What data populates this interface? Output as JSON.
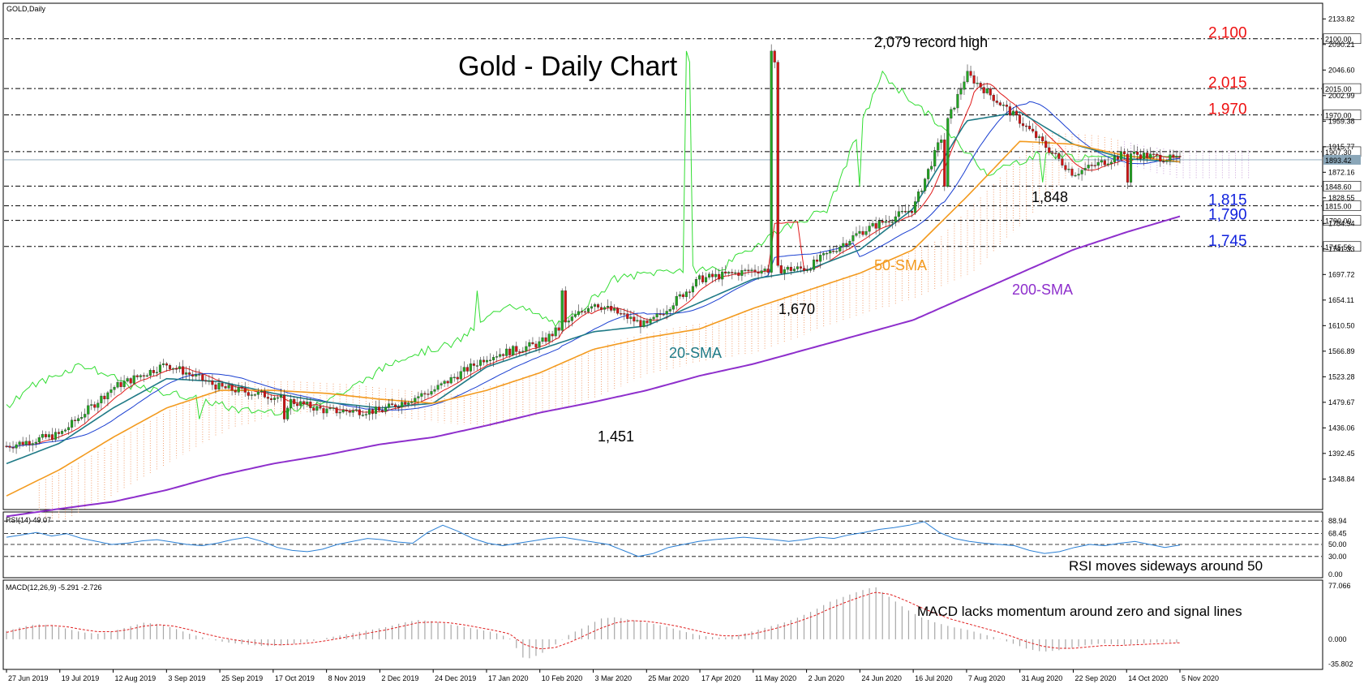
{
  "symbol_label": "GOLD,Daily",
  "title": "Gold - Daily Chart",
  "colors": {
    "bull": "#22a422",
    "bear": "#d01414",
    "wick": "#333333",
    "sma20": "#1f7a86",
    "sma50": "#f39a1e",
    "sma200": "#8e2fcc",
    "tenkan": "#e01a1a",
    "kijun": "#1a3fd1",
    "chikou": "#33dd33",
    "cloud": "#f2a070",
    "cloud_neg": "#c8a0d8",
    "level_red": "#ee1111",
    "level_blue": "#1122dd",
    "rsi": "#2a7fd4",
    "macd_hist": "#a8a8a8",
    "macd_signal": "#e02020"
  },
  "chart_data": [
    {
      "type": "candlestick",
      "name": "price",
      "y_ticks": [
        "2133.82",
        "2090.21",
        "2046.60",
        "2002.99",
        "1959.38",
        "1915.77",
        "1872.16",
        "1828.55",
        "1784.94",
        "1741.33",
        "1697.72",
        "1654.11",
        "1610.50",
        "1566.89",
        "1523.28",
        "1479.67",
        "1436.06",
        "1392.45",
        "1348.84"
      ],
      "ylim": [
        1305,
        2155
      ],
      "x_ticks": [
        "27 Jun 2019",
        "19 Jul 2019",
        "12 Aug 2019",
        "3 Sep 2019",
        "25 Sep 2019",
        "17 Oct 2019",
        "8 Nov 2019",
        "2 Dec 2019",
        "24 Dec 2019",
        "17 Jan 2020",
        "10 Feb 2020",
        "3 Mar 2020",
        "25 Mar 2020",
        "17 Apr 2020",
        "11 May 2020",
        "2 Jun 2020",
        "24 Jun 2020",
        "16 Jul 2020",
        "7 Aug 2020",
        "31 Aug 2020",
        "22 Sep 2020",
        "14 Oct 2020",
        "5 Nov 2020"
      ],
      "key_points": [
        {
          "date": "27 Jun 2019",
          "close": 1405
        },
        {
          "date": "19 Jul 2019",
          "close": 1425
        },
        {
          "date": "12 Aug 2019",
          "close": 1505
        },
        {
          "date": "3 Sep 2019",
          "close": 1545
        },
        {
          "date": "25 Sep 2019",
          "close": 1505
        },
        {
          "date": "17 Oct 2019",
          "close": 1490
        },
        {
          "date": "8 Nov 2019",
          "close": 1465
        },
        {
          "date": "2 Dec 2019",
          "close": 1465
        },
        {
          "date": "24 Dec 2019",
          "close": 1500
        },
        {
          "date": "17 Jan 2020",
          "close": 1557
        },
        {
          "date": "10 Feb 2020",
          "close": 1580
        },
        {
          "date": "3 Mar 2020",
          "close": 1650
        },
        {
          "date": "25 Mar 2020",
          "close": 1610
        },
        {
          "date": "17 Apr 2020",
          "close": 1690
        },
        {
          "date": "11 May 2020",
          "close": 1705
        },
        {
          "date": "2 Jun 2020",
          "close": 1708
        },
        {
          "date": "24 Jun 2020",
          "close": 1770
        },
        {
          "date": "16 Jul 2020",
          "close": 1810
        },
        {
          "date": "7 Aug 2020",
          "close": 2040
        },
        {
          "date": "31 Aug 2020",
          "close": 1960
        },
        {
          "date": "22 Sep 2020",
          "close": 1870
        },
        {
          "date": "14 Oct 2020",
          "close": 1905
        },
        {
          "date": "5 Nov 2020",
          "close": 1893
        }
      ],
      "sma20_points": [
        1375,
        1410,
        1470,
        1520,
        1515,
        1495,
        1480,
        1470,
        1478,
        1540,
        1570,
        1600,
        1610,
        1650,
        1690,
        1705,
        1740,
        1810,
        1960,
        1975,
        1920,
        1895,
        1890
      ],
      "sma50_points": [
        1320,
        1365,
        1420,
        1470,
        1500,
        1500,
        1495,
        1485,
        1478,
        1500,
        1530,
        1570,
        1590,
        1605,
        1640,
        1670,
        1700,
        1740,
        1830,
        1925,
        1920,
        1900,
        1890
      ],
      "sma200_points": [
        1285,
        1298,
        1310,
        1330,
        1355,
        1375,
        1390,
        1408,
        1420,
        1440,
        1462,
        1480,
        1500,
        1525,
        1545,
        1570,
        1595,
        1620,
        1660,
        1700,
        1740,
        1770,
        1797
      ],
      "levels": [
        {
          "label": "2,100",
          "value": 2100.0,
          "tag": "2100.00",
          "color": "red"
        },
        {
          "label": "2,015",
          "value": 2015.0,
          "tag": "2015.00",
          "color": "red"
        },
        {
          "label": "1,970",
          "value": 1970.0,
          "tag": "1970.00",
          "color": "red"
        },
        {
          "label": "",
          "value": 1907.3,
          "tag": "1907.30",
          "color": "none"
        },
        {
          "label": "1,848",
          "value": 1848.6,
          "tag": "1848.60",
          "color": "none"
        },
        {
          "label": "1,815",
          "value": 1815.0,
          "tag": "1815.00",
          "color": "blue"
        },
        {
          "label": "1,790",
          "value": 1790.0,
          "tag": "1790.00",
          "color": "blue"
        },
        {
          "label": "1,745",
          "value": 1745.56,
          "tag": "1745.56",
          "color": "blue"
        }
      ],
      "current_price": "1893.42",
      "annotations": [
        "2,079 record high",
        "1,848",
        "1,670",
        "1,451",
        "20-SMA",
        "50-SMA",
        "200-SMA"
      ]
    },
    {
      "type": "line",
      "name": "RSI(14) 49.07",
      "ylim": [
        0,
        100
      ],
      "y_ticks": [
        "88.94",
        "68.45",
        "50.00",
        "30.00",
        "0.00"
      ],
      "points": [
        62,
        66,
        70,
        64,
        68,
        60,
        55,
        50,
        52,
        56,
        58,
        54,
        50,
        48,
        52,
        58,
        62,
        55,
        45,
        40,
        38,
        42,
        50,
        55,
        60,
        58,
        54,
        52,
        70,
        82,
        72,
        60,
        52,
        48,
        52,
        56,
        60,
        62,
        58,
        54,
        50,
        40,
        30,
        35,
        45,
        50,
        55,
        58,
        60,
        62,
        60,
        58,
        55,
        58,
        62,
        60,
        66,
        70,
        75,
        78,
        82,
        88,
        70,
        60,
        55,
        52,
        50,
        48,
        40,
        35,
        38,
        45,
        50,
        48,
        52,
        55,
        50,
        45,
        49
      ],
      "annotation": "RSI moves sideways around 50"
    },
    {
      "type": "bar",
      "name": "MACD(12,26,9) -5.291 -2.726",
      "ylim": [
        -40,
        82
      ],
      "y_ticks": [
        "77.066",
        "0.000",
        "-35.802"
      ],
      "histogram": [
        12,
        18,
        22,
        20,
        15,
        10,
        8,
        12,
        18,
        24,
        22,
        16,
        8,
        2,
        -3,
        -6,
        -8,
        -10,
        -9,
        -6,
        -3,
        2,
        6,
        10,
        14,
        18,
        24,
        28,
        26,
        22,
        18,
        14,
        10,
        2,
        -30,
        -22,
        -8,
        8,
        18,
        30,
        32,
        28,
        24,
        20,
        14,
        8,
        4,
        2,
        6,
        12,
        18,
        24,
        32,
        42,
        54,
        62,
        70,
        76,
        60,
        44,
        32,
        24,
        18,
        14,
        8,
        2,
        -6,
        -14,
        -18,
        -16,
        -12,
        -8,
        -6,
        -8,
        -7,
        -5,
        -4,
        -5
      ],
      "signal": [
        10,
        15,
        19,
        20,
        18,
        14,
        11,
        11,
        14,
        19,
        21,
        19,
        14,
        8,
        3,
        -1,
        -4,
        -7,
        -8,
        -7,
        -5,
        -2,
        2,
        6,
        10,
        14,
        19,
        24,
        25,
        24,
        21,
        17,
        13,
        8,
        -8,
        -14,
        -12,
        -4,
        6,
        16,
        24,
        27,
        26,
        23,
        19,
        14,
        9,
        5,
        5,
        8,
        13,
        19,
        26,
        34,
        44,
        53,
        61,
        68,
        65,
        56,
        46,
        37,
        29,
        23,
        17,
        11,
        4,
        -4,
        -10,
        -13,
        -13,
        -11,
        -9,
        -9,
        -8,
        -7,
        -6,
        -5
      ],
      "annotation": "MACD lacks momentum around zero and signal lines"
    }
  ]
}
